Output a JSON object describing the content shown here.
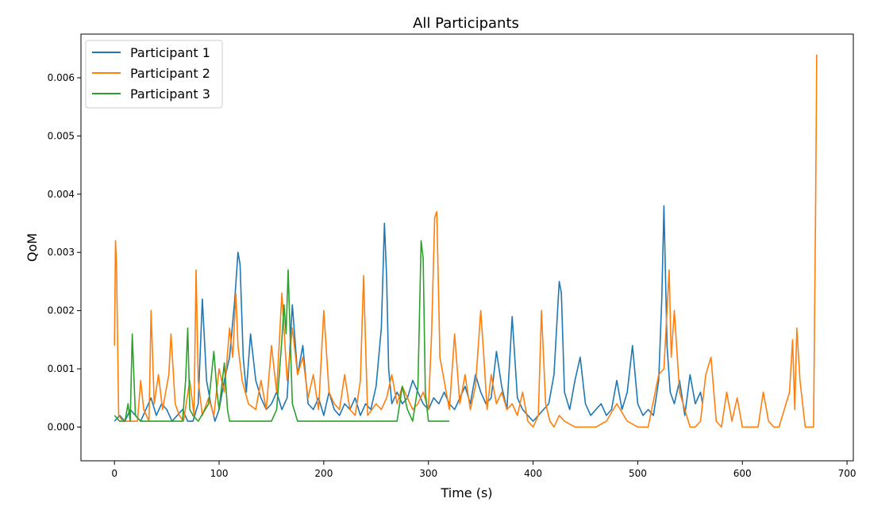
{
  "chart_data": {
    "type": "line",
    "title": "All Participants",
    "xlabel": "Time (s)",
    "ylabel": "QoM",
    "xlim": [
      -32,
      706
    ],
    "ylim": [
      -0.00058,
      0.00675
    ],
    "xticks": [
      0,
      100,
      200,
      300,
      400,
      500,
      600,
      700
    ],
    "xtick_labels": [
      "0",
      "100",
      "200",
      "300",
      "400",
      "500",
      "600",
      "700"
    ],
    "yticks": [
      0.0,
      0.001,
      0.002,
      0.003,
      0.004,
      0.005,
      0.006
    ],
    "ytick_labels": [
      "0.000",
      "0.001",
      "0.002",
      "0.003",
      "0.004",
      "0.005",
      "0.006"
    ],
    "grid": false,
    "legend_position": "top-left",
    "series": [
      {
        "name": "Participant 1",
        "color": "#1f77b4",
        "x": [
          0,
          5,
          10,
          15,
          20,
          25,
          30,
          35,
          40,
          45,
          50,
          55,
          60,
          65,
          70,
          75,
          80,
          84,
          88,
          92,
          96,
          100,
          105,
          110,
          115,
          118,
          120,
          123,
          126,
          130,
          135,
          140,
          145,
          150,
          155,
          160,
          165,
          170,
          175,
          180,
          185,
          190,
          195,
          200,
          205,
          210,
          215,
          220,
          225,
          230,
          235,
          240,
          245,
          250,
          255,
          258,
          260,
          262,
          265,
          270,
          275,
          280,
          285,
          290,
          295,
          300,
          305,
          310,
          315,
          320,
          325,
          330,
          335,
          340,
          345,
          350,
          355,
          360,
          365,
          370,
          375,
          380,
          385,
          390,
          395,
          400,
          405,
          410,
          415,
          420,
          425,
          427,
          430,
          435,
          440,
          445,
          450,
          455,
          460,
          465,
          470,
          475,
          480,
          485,
          490,
          495,
          500,
          505,
          510,
          515,
          520,
          523,
          525,
          528,
          531,
          535,
          540,
          545,
          550,
          555,
          560,
          562
        ],
        "y": [
          0.0001,
          0.0002,
          0.0001,
          0.0003,
          0.0002,
          0.0001,
          0.0003,
          0.0005,
          0.0002,
          0.0004,
          0.0003,
          0.0001,
          0.0002,
          0.0003,
          0.0001,
          0.0001,
          0.0004,
          0.0022,
          0.0008,
          0.0004,
          0.0001,
          0.0003,
          0.0008,
          0.0012,
          0.0022,
          0.003,
          0.0028,
          0.0012,
          0.0006,
          0.0016,
          0.0008,
          0.0005,
          0.0003,
          0.0004,
          0.0006,
          0.0003,
          0.0005,
          0.0021,
          0.0009,
          0.0014,
          0.0004,
          0.0003,
          0.0005,
          0.0002,
          0.0006,
          0.0003,
          0.0002,
          0.0004,
          0.0003,
          0.0005,
          0.0002,
          0.0004,
          0.0003,
          0.0007,
          0.0017,
          0.0035,
          0.0026,
          0.001,
          0.0004,
          0.0006,
          0.0004,
          0.0005,
          0.0008,
          0.0006,
          0.0004,
          0.0003,
          0.0005,
          0.0004,
          0.0006,
          0.0004,
          0.0003,
          0.0005,
          0.0007,
          0.0004,
          0.0009,
          0.0006,
          0.0004,
          0.0005,
          0.0013,
          0.0007,
          0.0003,
          0.0019,
          0.0005,
          0.0003,
          0.0002,
          0.0001,
          0.0002,
          0.0003,
          0.0004,
          0.0009,
          0.0025,
          0.0023,
          0.0006,
          0.0003,
          0.0008,
          0.0012,
          0.0004,
          0.0002,
          0.0003,
          0.0004,
          0.0002,
          0.0003,
          0.0008,
          0.0003,
          0.0006,
          0.0014,
          0.0004,
          0.0002,
          0.0003,
          0.0002,
          0.0008,
          0.0022,
          0.0038,
          0.0014,
          0.0006,
          0.0004,
          0.0008,
          0.0002,
          0.0009,
          0.0004,
          0.0006,
          0.0004
        ]
      },
      {
        "name": "Participant 2",
        "color": "#ff7f0e",
        "x": [
          0,
          1,
          2,
          4,
          8,
          12,
          18,
          22,
          25,
          28,
          33,
          35,
          38,
          42,
          46,
          52,
          54,
          58,
          62,
          66,
          72,
          76,
          78,
          80,
          84,
          90,
          95,
          100,
          105,
          110,
          113,
          116,
          118,
          122,
          128,
          135,
          140,
          145,
          150,
          155,
          160,
          165,
          170,
          175,
          180,
          185,
          190,
          195,
          200,
          205,
          210,
          215,
          220,
          225,
          230,
          235,
          238,
          242,
          250,
          255,
          260,
          265,
          270,
          275,
          280,
          285,
          290,
          295,
          300,
          303,
          306,
          308,
          311,
          315,
          320,
          325,
          330,
          335,
          340,
          345,
          350,
          353,
          356,
          360,
          365,
          370,
          375,
          380,
          385,
          390,
          395,
          400,
          405,
          408,
          412,
          416,
          420,
          425,
          430,
          440,
          450,
          460,
          470,
          480,
          490,
          500,
          510,
          520,
          525,
          530,
          532,
          535,
          540,
          545,
          550,
          555,
          560,
          565,
          570,
          575,
          580,
          585,
          590,
          595,
          600,
          605,
          610,
          615,
          620,
          625,
          630,
          635,
          640,
          645,
          648,
          650,
          652,
          655,
          660,
          665,
          668,
          670,
          671
        ],
        "y": [
          0.0014,
          0.0032,
          0.0028,
          0.0002,
          0.0001,
          0.0001,
          0.0001,
          0.0001,
          0.0008,
          0.0003,
          0.0001,
          0.002,
          0.0004,
          0.0009,
          0.0003,
          0.0009,
          0.0016,
          0.0004,
          0.0002,
          0.0001,
          0.0008,
          0.0002,
          0.0027,
          0.0008,
          0.0002,
          0.0005,
          0.0002,
          0.001,
          0.0006,
          0.0017,
          0.0012,
          0.0023,
          0.0014,
          0.0008,
          0.0004,
          0.0003,
          0.0008,
          0.0003,
          0.0014,
          0.0006,
          0.0023,
          0.0008,
          0.0017,
          0.0009,
          0.0012,
          0.0005,
          0.0009,
          0.0003,
          0.002,
          0.0006,
          0.0004,
          0.0003,
          0.0009,
          0.0003,
          0.0002,
          0.0008,
          0.0026,
          0.0002,
          0.0004,
          0.0003,
          0.0005,
          0.0009,
          0.0004,
          0.0007,
          0.0005,
          0.0003,
          0.0004,
          0.0006,
          0.0003,
          0.0016,
          0.0036,
          0.0037,
          0.0012,
          0.0008,
          0.0003,
          0.0016,
          0.0004,
          0.0009,
          0.0003,
          0.0007,
          0.002,
          0.0012,
          0.0003,
          0.0009,
          0.0004,
          0.0006,
          0.0003,
          0.0004,
          0.0002,
          0.0006,
          0.0001,
          0.0,
          0.0002,
          0.002,
          0.0004,
          0.0001,
          0.0,
          0.0002,
          0.0001,
          0.0,
          0.0,
          0.0,
          0.0001,
          0.0004,
          0.0001,
          0.0,
          0.0,
          0.0009,
          0.001,
          0.0027,
          0.0012,
          0.002,
          0.0006,
          0.0003,
          0.0,
          0.0,
          0.0001,
          0.0009,
          0.0012,
          0.0001,
          0.0,
          0.0006,
          0.0001,
          0.0005,
          0.0,
          0.0,
          0.0,
          0.0,
          0.0006,
          0.0001,
          0.0,
          0.0,
          0.0003,
          0.0006,
          0.0015,
          0.0003,
          0.0017,
          0.0008,
          0.0,
          0.0,
          0.0,
          0.0038,
          0.0064
        ]
      },
      {
        "name": "Participant 3",
        "color": "#2ca02c",
        "x": [
          0,
          5,
          10,
          13,
          15,
          17,
          20,
          25,
          30,
          40,
          50,
          60,
          65,
          68,
          70,
          72,
          75,
          80,
          90,
          95,
          98,
          100,
          105,
          108,
          110,
          115,
          120,
          125,
          130,
          140,
          150,
          155,
          160,
          162,
          164,
          166,
          168,
          170,
          175,
          180,
          190,
          200,
          210,
          220,
          230,
          240,
          250,
          260,
          270,
          275,
          280,
          285,
          290,
          293,
          295,
          297,
          300,
          310,
          320
        ],
        "y": [
          0.0002,
          0.0001,
          0.0001,
          0.0004,
          0.0001,
          0.0016,
          0.0002,
          0.0001,
          0.0001,
          0.0001,
          0.0001,
          0.0001,
          0.0001,
          0.0008,
          0.0017,
          0.0003,
          0.0002,
          0.0001,
          0.0004,
          0.0013,
          0.0006,
          0.0003,
          0.0011,
          0.0003,
          0.0001,
          0.0001,
          0.0001,
          0.0001,
          0.0001,
          0.0001,
          0.0001,
          0.0003,
          0.0015,
          0.0021,
          0.0016,
          0.0027,
          0.0015,
          0.0004,
          0.0001,
          0.0001,
          0.0001,
          0.0001,
          0.0001,
          0.0001,
          0.0001,
          0.0001,
          0.0001,
          0.0001,
          0.0001,
          0.0007,
          0.0003,
          0.0001,
          0.0007,
          0.0032,
          0.0029,
          0.0006,
          0.0001,
          0.0001,
          0.0001
        ]
      }
    ]
  }
}
